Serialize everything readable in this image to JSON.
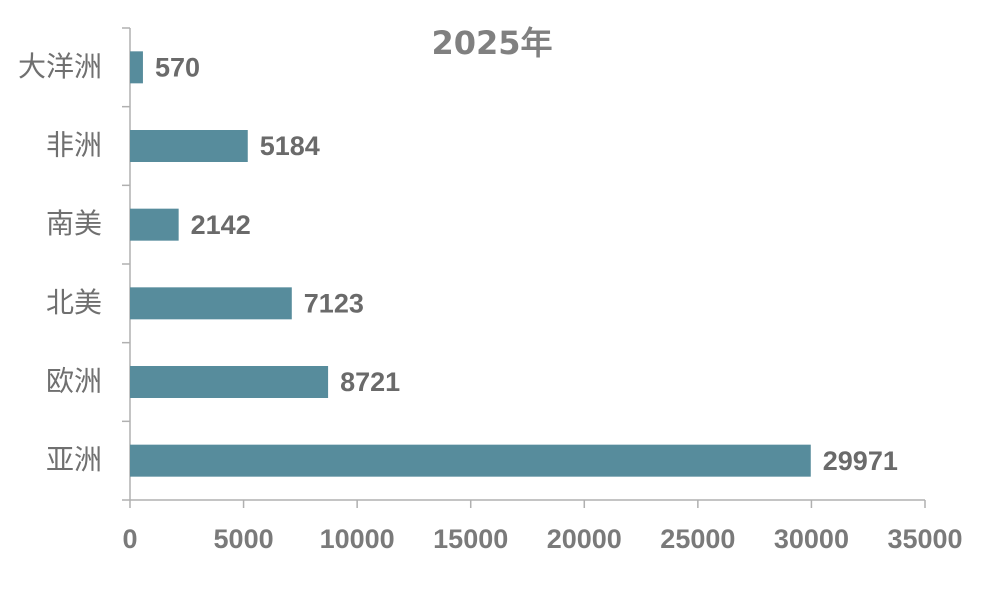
{
  "chart_data": {
    "type": "bar",
    "orientation": "horizontal",
    "title": "2025年",
    "categories": [
      "大洋洲",
      "非洲",
      "南美",
      "北美",
      "欧洲",
      "亚洲"
    ],
    "values": [
      570,
      5184,
      2142,
      7123,
      8721,
      29971
    ],
    "color": "#578c9c",
    "xlim": [
      0,
      35000
    ],
    "xticks": [
      0,
      5000,
      10000,
      15000,
      20000,
      25000,
      30000,
      35000
    ],
    "grid": false
  }
}
